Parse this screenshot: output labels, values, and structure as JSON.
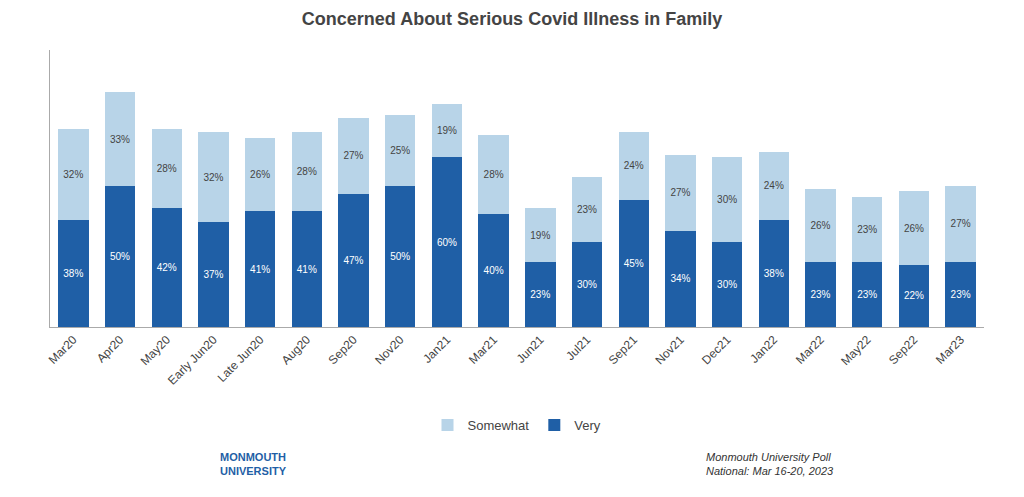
{
  "chart_data": {
    "type": "bar",
    "title": "Concerned About Serious Covid Illness in Family",
    "categories": [
      "Mar20",
      "Apr20",
      "May20",
      "Early Jun20",
      "Late Jun20",
      "Aug20",
      "Sep20",
      "Nov20",
      "Jan21",
      "Mar21",
      "Jun21",
      "Jul21",
      "Sep21",
      "Nov21",
      "Dec21",
      "Jan22",
      "Mar22",
      "May22",
      "Sep22",
      "Mar23"
    ],
    "series": [
      {
        "name": "Very",
        "color": "#1f5fa6",
        "values": [
          38,
          50,
          42,
          37,
          41,
          41,
          47,
          50,
          60,
          40,
          23,
          30,
          45,
          34,
          30,
          38,
          23,
          23,
          22,
          23
        ],
        "value_labels": [
          "38%",
          "50%",
          "42%",
          "37%",
          "41%",
          "41%",
          "47%",
          "50%",
          "60%",
          "40%",
          "23%",
          "30%",
          "45%",
          "34%",
          "30%",
          "38%",
          "23%",
          "23%",
          "22%",
          "23%"
        ]
      },
      {
        "name": "Somewhat",
        "color": "#b8d4e8",
        "values": [
          32,
          33,
          28,
          32,
          26,
          28,
          27,
          25,
          19,
          28,
          19,
          23,
          24,
          27,
          30,
          24,
          26,
          23,
          26,
          27
        ],
        "value_labels": [
          "32%",
          "33%",
          "28%",
          "32%",
          "26%",
          "28%",
          "27%",
          "25%",
          "19%",
          "28%",
          "19%",
          "23%",
          "24%",
          "27%",
          "30%",
          "24%",
          "26%",
          "23%",
          "26%",
          "27%"
        ]
      }
    ],
    "stacked": true,
    "ylim": [
      0,
      98
    ],
    "yticks": [],
    "tick_labels": "x",
    "grid": false,
    "legend": "lower center",
    "data_labels": true,
    "annotations": [
      "MONMOUTH\nUNIVERSITY",
      "Monmouth University Poll\nNational: Mar 16-20, 2023"
    ]
  }
}
